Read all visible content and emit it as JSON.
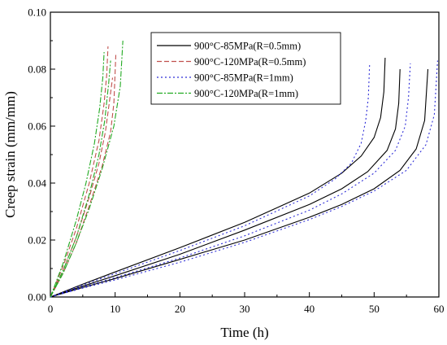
{
  "chart_data": {
    "type": "line",
    "xlabel": "Time  (h)",
    "ylabel": "Creep strain (mm/mm)",
    "xlim": [
      0,
      60
    ],
    "ylim": [
      0,
      0.1
    ],
    "xticks": [
      0,
      10,
      20,
      30,
      40,
      50,
      60
    ],
    "yticks": [
      0,
      0.02,
      0.04,
      0.06,
      0.08,
      0.1
    ],
    "xtick_labels": [
      "0",
      "10",
      "20",
      "30",
      "40",
      "50",
      "60"
    ],
    "ytick_labels": [
      "0.00",
      "0.02",
      "0.04",
      "0.06",
      "0.08",
      "0.10"
    ],
    "grid": false,
    "legend_position": "top-right",
    "series": [
      {
        "name": "900°C-85MPa(R=0.5mm)",
        "color": "#000000",
        "dash": "solid",
        "curves": [
          [
            [
              0,
              0
            ],
            [
              5,
              0.0045
            ],
            [
              10,
              0.0088
            ],
            [
              20,
              0.0173
            ],
            [
              30,
              0.0262
            ],
            [
              40,
              0.0365
            ],
            [
              45,
              0.0435
            ],
            [
              48,
              0.0495
            ],
            [
              50,
              0.056
            ],
            [
              51,
              0.063
            ],
            [
              51.5,
              0.072
            ],
            [
              51.7,
              0.084
            ]
          ],
          [
            [
              0,
              0
            ],
            [
              5,
              0.0038
            ],
            [
              10,
              0.0075
            ],
            [
              20,
              0.015
            ],
            [
              30,
              0.0235
            ],
            [
              40,
              0.0325
            ],
            [
              45,
              0.038
            ],
            [
              49,
              0.044
            ],
            [
              52,
              0.0515
            ],
            [
              53.3,
              0.059
            ],
            [
              53.8,
              0.068
            ],
            [
              54,
              0.08
            ]
          ],
          [
            [
              0,
              0
            ],
            [
              5,
              0.0033
            ],
            [
              10,
              0.0065
            ],
            [
              20,
              0.0132
            ],
            [
              30,
              0.02
            ],
            [
              40,
              0.028
            ],
            [
              45,
              0.0325
            ],
            [
              50,
              0.038
            ],
            [
              54,
              0.0445
            ],
            [
              56.5,
              0.052
            ],
            [
              57.8,
              0.062
            ],
            [
              58.3,
              0.08
            ]
          ]
        ]
      },
      {
        "name": "900°C-120MPa(R=0.5mm)",
        "color": "#c0504d",
        "dash": "6,3",
        "curves": [
          [
            [
              0,
              0
            ],
            [
              2,
              0.011
            ],
            [
              4,
              0.024
            ],
            [
              6,
              0.04
            ],
            [
              7.5,
              0.055
            ],
            [
              8.3,
              0.068
            ],
            [
              8.7,
              0.078
            ],
            [
              8.9,
              0.088
            ]
          ],
          [
            [
              0,
              0
            ],
            [
              2,
              0.0095
            ],
            [
              4,
              0.021
            ],
            [
              6,
              0.035
            ],
            [
              7.5,
              0.047
            ],
            [
              8.5,
              0.058
            ],
            [
              9.2,
              0.07
            ],
            [
              9.6,
              0.077
            ]
          ],
          [
            [
              0,
              0
            ],
            [
              2,
              0.0085
            ],
            [
              4,
              0.019
            ],
            [
              6,
              0.032
            ],
            [
              8,
              0.046
            ],
            [
              9.3,
              0.058
            ],
            [
              9.8,
              0.068
            ],
            [
              10.1,
              0.085
            ]
          ]
        ]
      },
      {
        "name": "900°C-85MPa(R=1mm)",
        "color": "#2f2fd8",
        "dash": "2,3",
        "curves": [
          [
            [
              0,
              0
            ],
            [
              5,
              0.0042
            ],
            [
              10,
              0.0082
            ],
            [
              20,
              0.0163
            ],
            [
              30,
              0.025
            ],
            [
              40,
              0.0355
            ],
            [
              44,
              0.0415
            ],
            [
              46.5,
              0.047
            ],
            [
              48,
              0.054
            ],
            [
              48.7,
              0.062
            ],
            [
              49.1,
              0.07
            ],
            [
              49.3,
              0.082
            ]
          ],
          [
            [
              0,
              0
            ],
            [
              5,
              0.0035
            ],
            [
              10,
              0.0068
            ],
            [
              20,
              0.0137
            ],
            [
              30,
              0.0215
            ],
            [
              40,
              0.0305
            ],
            [
              45,
              0.0362
            ],
            [
              50,
              0.0435
            ],
            [
              53.3,
              0.0515
            ],
            [
              54.8,
              0.06
            ],
            [
              55.3,
              0.07
            ],
            [
              55.6,
              0.082
            ]
          ],
          [
            [
              0,
              0
            ],
            [
              5,
              0.0031
            ],
            [
              10,
              0.006
            ],
            [
              20,
              0.0122
            ],
            [
              30,
              0.0192
            ],
            [
              40,
              0.0272
            ],
            [
              45,
              0.0318
            ],
            [
              50,
              0.0372
            ],
            [
              55,
              0.0445
            ],
            [
              58,
              0.0535
            ],
            [
              59.3,
              0.064
            ],
            [
              59.8,
              0.083
            ]
          ]
        ]
      },
      {
        "name": "900°C-120MPa(R=1mm)",
        "color": "#22aa22",
        "dash": "7,2,2,2",
        "curves": [
          [
            [
              0,
              0
            ],
            [
              2,
              0.012
            ],
            [
              4,
              0.027
            ],
            [
              5.5,
              0.04
            ],
            [
              6.8,
              0.054
            ],
            [
              7.6,
              0.066
            ],
            [
              8.1,
              0.077
            ],
            [
              8.3,
              0.086
            ]
          ],
          [
            [
              0,
              0
            ],
            [
              2,
              0.0095
            ],
            [
              4,
              0.021
            ],
            [
              6,
              0.036
            ],
            [
              7.5,
              0.05
            ],
            [
              8.4,
              0.062
            ],
            [
              9,
              0.075
            ],
            [
              9.3,
              0.083
            ]
          ],
          [
            [
              0,
              0
            ],
            [
              2,
              0.0085
            ],
            [
              4,
              0.019
            ],
            [
              6,
              0.031
            ],
            [
              8,
              0.045
            ],
            [
              9.8,
              0.06
            ],
            [
              10.8,
              0.074
            ],
            [
              11.2,
              0.09
            ]
          ]
        ]
      }
    ]
  }
}
